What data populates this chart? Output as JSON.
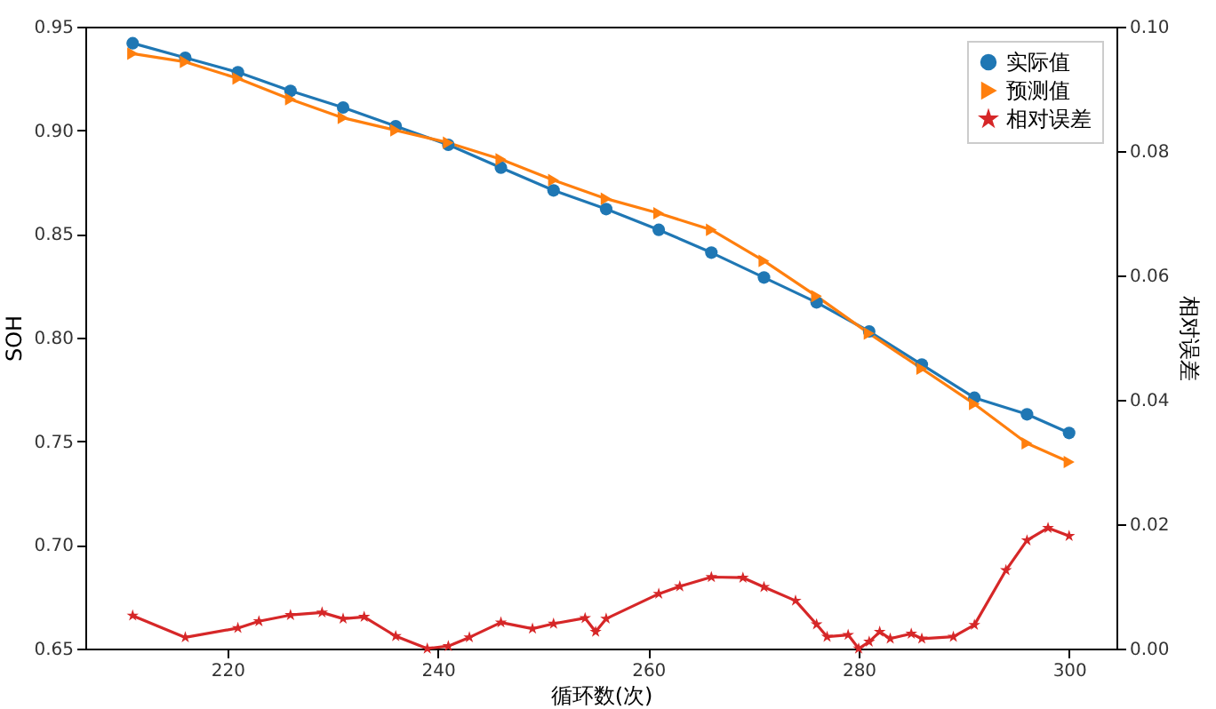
{
  "chart_data": {
    "type": "line",
    "xlabel": "循环数(次)",
    "ylabel": "SOH",
    "y2label": "相对误差",
    "xlim": [
      206.5,
      304.5
    ],
    "xticks": [
      220,
      240,
      260,
      280,
      300
    ],
    "ylim": [
      0.65,
      0.95
    ],
    "yticks": [
      0.65,
      {
        "value": 0.7,
        "label": "0.70"
      },
      0.75,
      {
        "value": 0.8,
        "label": "0.80"
      },
      0.85,
      {
        "value": 0.9,
        "label": "0.90"
      },
      0.95
    ],
    "y2lim": [
      0,
      0.1
    ],
    "y2ticks": [
      {
        "value": 0,
        "label": "0.00"
      },
      0.02,
      0.04,
      0.06,
      0.08,
      {
        "value": 0.1,
        "label": "0.10"
      }
    ],
    "grid": false,
    "legend": "top right",
    "series": [
      {
        "name": "实际值",
        "color": "#1f77b4",
        "marker": "circle",
        "x": [
          211,
          216,
          221,
          226,
          231,
          236,
          241,
          246,
          251,
          256,
          261,
          266,
          271,
          276,
          281,
          286,
          291,
          296,
          300
        ],
        "values": [
          0.942,
          0.935,
          0.928,
          0.919,
          0.911,
          0.902,
          0.893,
          0.882,
          0.871,
          0.862,
          0.852,
          0.841,
          0.829,
          0.817,
          0.803,
          0.787,
          0.771,
          0.763,
          0.754
        ]
      },
      {
        "name": "预测值",
        "color": "#ff7f0e",
        "marker": "triangle",
        "x": [
          211,
          216,
          221,
          226,
          231,
          236,
          241,
          246,
          251,
          256,
          261,
          266,
          271,
          276,
          281,
          286,
          291,
          296,
          300
        ],
        "values": [
          0.937,
          0.933,
          0.925,
          0.915,
          0.906,
          0.9,
          0.894,
          0.886,
          0.876,
          0.867,
          0.86,
          0.852,
          0.837,
          0.82,
          0.802,
          0.785,
          0.768,
          0.749,
          0.74
        ]
      },
      {
        "name": "相对误差",
        "color": "#d62728",
        "marker": "star",
        "axis": "y2",
        "x": [
          211,
          216,
          221,
          223,
          226,
          229,
          231,
          233,
          236,
          239,
          241,
          243,
          246,
          249,
          251,
          254,
          255,
          256,
          261,
          263,
          266,
          269,
          271,
          274,
          276,
          277,
          279,
          280,
          281,
          282,
          283,
          285,
          286,
          289,
          291,
          294,
          296,
          298,
          300
        ],
        "values": [
          0.0053,
          0.0018,
          0.0033,
          0.0044,
          0.0054,
          0.0058,
          0.0048,
          0.0051,
          0.002,
          0.0,
          0.0004,
          0.0018,
          0.0042,
          0.0032,
          0.004,
          0.0049,
          0.0027,
          0.0048,
          0.0088,
          0.01,
          0.0115,
          0.0114,
          0.0099,
          0.0077,
          0.0039,
          0.0019,
          0.0022,
          0.0,
          0.0011,
          0.0027,
          0.0016,
          0.0024,
          0.0016,
          0.0019,
          0.0038,
          0.0126,
          0.0174,
          0.0194,
          0.0181
        ]
      }
    ]
  }
}
